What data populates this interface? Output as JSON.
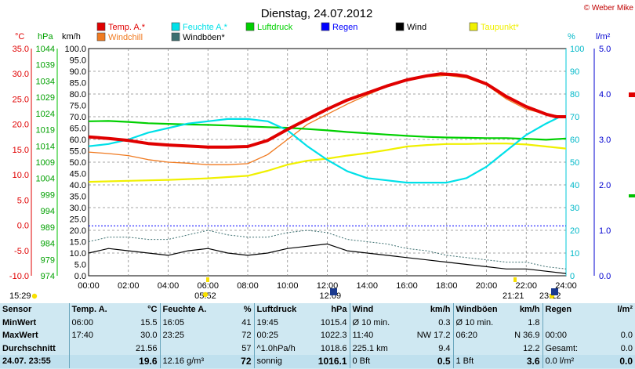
{
  "chart_data": {
    "type": "line",
    "title": "Dienstag, 24.07.2012",
    "credit": "© Weber Mike",
    "axis_units": {
      "temp": "°C",
      "pressure": "hPa",
      "wind": "km/h",
      "humidity": "%",
      "rain": "l/m²"
    },
    "temp_ticks": [
      "35.0",
      "30.0",
      "25.0",
      "20.0",
      "15.0",
      "10.0",
      "5.0",
      "0.0",
      "-5.0",
      "-10.0"
    ],
    "pressure_ticks": [
      "1044",
      "1039",
      "1034",
      "1029",
      "1024",
      "1019",
      "1014",
      "1009",
      "1004",
      "999",
      "994",
      "989",
      "984",
      "979",
      "974"
    ],
    "wind_ticks": [
      "100.0",
      "95.0",
      "90.0",
      "85.0",
      "80.0",
      "75.0",
      "70.0",
      "65.0",
      "60.0",
      "55.0",
      "50.0",
      "45.0",
      "40.0",
      "35.0",
      "30.0",
      "25.0",
      "20.0",
      "15.0",
      "10.0",
      "5.0",
      "0.0"
    ],
    "humidity_ticks": [
      "100",
      "90",
      "80",
      "70",
      "60",
      "50",
      "40",
      "30",
      "20",
      "10",
      "0"
    ],
    "rain_ticks": [
      "5.0",
      "4.0",
      "3.0",
      "2.0",
      "1.0",
      "0.0"
    ],
    "x_ticks": [
      "00:00",
      "02:00",
      "04:00",
      "06:00",
      "08:00",
      "10:00",
      "12:00",
      "14:00",
      "16:00",
      "18:00",
      "20:00",
      "22:00",
      "24:00"
    ],
    "legend": [
      {
        "label": "Temp. A.*",
        "color": "#e00000"
      },
      {
        "label": "Feuchte A.*",
        "color": "#00e0e8"
      },
      {
        "label": "Luftdruck",
        "color": "#00d000"
      },
      {
        "label": "Regen",
        "color": "#0000ff"
      },
      {
        "label": "Wind",
        "color": "#000000"
      },
      {
        "label": "Taupunkt*",
        "color": "#f0f000"
      },
      {
        "label": "Windchill",
        "color": "#f07a20"
      },
      {
        "label": "Windböen*",
        "color": "#3c6f70"
      }
    ],
    "sun_events": [
      {
        "label": "15:29",
        "hour": -0.8
      },
      {
        "label": "05:52",
        "hour": 5.87
      },
      {
        "label": "12:09",
        "hour": 12.15
      },
      {
        "label": "21:21",
        "hour": 21.35
      },
      {
        "label": "23:12",
        "hour": 23.2
      }
    ],
    "series": [
      {
        "name": "Temp. A.*",
        "axis": "temp",
        "color": "#e00000",
        "x": [
          0,
          1,
          2,
          3,
          4,
          5,
          6,
          7,
          8,
          9,
          10,
          11,
          12,
          13,
          14,
          15,
          16,
          17,
          17.7,
          18.5,
          19,
          20,
          21,
          22,
          23,
          23.5,
          24
        ],
        "y": [
          17.5,
          17.2,
          16.8,
          16.2,
          15.9,
          15.7,
          15.5,
          15.5,
          15.6,
          16.8,
          19.0,
          21.0,
          23.0,
          24.8,
          26.2,
          27.6,
          28.8,
          29.6,
          30.0,
          29.8,
          29.5,
          28.0,
          25.5,
          23.5,
          22.0,
          21.5,
          21.5
        ]
      },
      {
        "name": "Windchill",
        "axis": "temp",
        "color": "#f07a20",
        "x": [
          0,
          1,
          2,
          3,
          4,
          5,
          6,
          7,
          8,
          9,
          10,
          11,
          12,
          13,
          14,
          15,
          16,
          17,
          18,
          19,
          20,
          21,
          22,
          23,
          24
        ],
        "y": [
          14.5,
          14.2,
          13.8,
          13.0,
          12.5,
          12.3,
          12.0,
          12.0,
          12.2,
          14.0,
          17.0,
          20.0,
          22.0,
          24.0,
          25.8,
          27.5,
          28.8,
          29.4,
          29.7,
          29.2,
          27.8,
          25.0,
          23.0,
          22.0,
          21.5
        ]
      },
      {
        "name": "Feuchte A.*",
        "axis": "humidity",
        "color": "#00e0e8",
        "x": [
          0,
          1,
          2,
          3,
          4,
          5,
          6,
          7,
          8,
          9,
          10,
          11,
          12,
          13,
          14,
          15,
          16,
          17,
          18,
          19,
          20,
          21,
          22,
          23,
          23.7,
          24
        ],
        "y": [
          57,
          58,
          60,
          63,
          65,
          67,
          68,
          69,
          69,
          68,
          64,
          57,
          51,
          46,
          43,
          42,
          41,
          41,
          41,
          43,
          48,
          55,
          62,
          67,
          70,
          70
        ]
      },
      {
        "name": "Luftdruck",
        "axis": "pressure",
        "color": "#00d000",
        "x": [
          0,
          1,
          2,
          3,
          4,
          5,
          6,
          7,
          8,
          9,
          10,
          11,
          12,
          13,
          14,
          15,
          16,
          17,
          18,
          19,
          20,
          21,
          22,
          23,
          24
        ],
        "y": [
          1021.6,
          1021.7,
          1021.4,
          1021.0,
          1020.8,
          1020.6,
          1020.5,
          1020.3,
          1020.0,
          1019.8,
          1019.6,
          1019.2,
          1018.8,
          1018.3,
          1017.9,
          1017.5,
          1017.1,
          1016.8,
          1016.6,
          1016.5,
          1016.4,
          1016.4,
          1016.2,
          1015.9,
          1016.3
        ]
      },
      {
        "name": "Taupunkt*",
        "axis": "temp",
        "color": "#f0f000",
        "x": [
          0,
          2,
          4,
          6,
          8,
          9,
          10,
          11,
          12,
          13,
          14,
          15,
          16,
          17,
          18,
          19,
          20,
          21,
          22,
          23,
          24
        ],
        "y": [
          8.6,
          8.8,
          9.0,
          9.3,
          9.8,
          10.8,
          12.0,
          12.8,
          13.2,
          13.8,
          14.3,
          14.9,
          15.6,
          15.9,
          16.1,
          16.1,
          16.2,
          16.2,
          16.0,
          15.6,
          15.2
        ]
      },
      {
        "name": "Wind",
        "axis": "wind",
        "color": "#000000",
        "x": [
          0,
          1,
          2,
          3,
          4,
          5,
          6,
          7,
          8,
          9,
          10,
          11,
          12,
          13,
          14,
          15,
          16,
          17,
          18,
          19,
          20,
          21,
          22,
          23,
          24
        ],
        "y": [
          10,
          12,
          11,
          10,
          9,
          11,
          12,
          10,
          9,
          10,
          12,
          13,
          14,
          11,
          10,
          9,
          8,
          7,
          6,
          5,
          4,
          3,
          3,
          2,
          1
        ]
      },
      {
        "name": "Windböen*",
        "axis": "wind",
        "color": "#3c6f70",
        "x": [
          0,
          1,
          2,
          3,
          4,
          5,
          6,
          7,
          8,
          9,
          10,
          11,
          12,
          13,
          14,
          15,
          16,
          17,
          18,
          19,
          20,
          21,
          22,
          23,
          24
        ],
        "y": [
          15,
          17,
          17,
          16,
          16,
          18,
          20,
          18,
          17,
          17,
          19,
          20,
          19,
          16,
          15,
          14,
          12,
          11,
          9,
          8,
          7,
          6,
          6,
          4,
          3
        ]
      },
      {
        "name": "Regen",
        "axis": "rain",
        "color": "#0000ff",
        "x": [
          0,
          24
        ],
        "y": [
          1.1,
          1.1
        ]
      }
    ]
  },
  "table": {
    "headers": [
      "Sensor",
      "Temp. A.",
      "°C",
      "Feuchte A.",
      "%",
      "Luftdruck",
      "hPa",
      "Wind",
      "km/h",
      "Windböen",
      "km/h",
      "Regen",
      "l/m²"
    ],
    "rows": [
      [
        "MinWert",
        "06:00",
        "15.5",
        "16:05",
        "41",
        "19:45",
        "1015.4",
        "Ø 10 min.",
        "0.3",
        "Ø 10 min.",
        "1.8",
        "",
        ""
      ],
      [
        "MaxWert",
        "17:40",
        "30.0",
        "23:25",
        "72",
        "00:25",
        "1022.3",
        "11:40",
        "NW 17.2",
        "06:20",
        "N 36.9",
        "00:00",
        "0.0"
      ],
      [
        "Durchschnitt",
        "",
        "21.56",
        "",
        "57",
        "^1.0hPa/h",
        "1018.6",
        "225.1 km",
        "9.4",
        "",
        "12.2",
        "Gesamt:",
        "0.0"
      ],
      [
        "24.07. 23:55",
        "",
        "19.6",
        "12.16 g/m³",
        "72",
        "sonnig",
        "1016.1",
        "0 Bft",
        "0.5",
        "1 Bft",
        "3.6",
        "0.0 l/m²",
        "0.0"
      ]
    ]
  }
}
